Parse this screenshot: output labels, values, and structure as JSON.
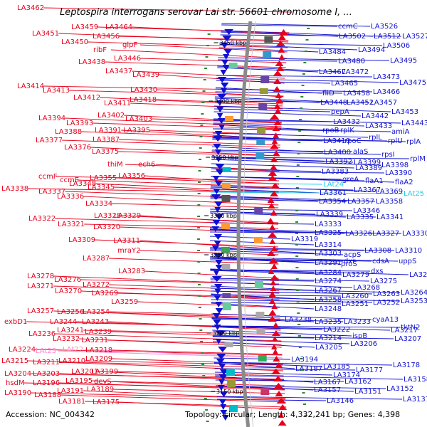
{
  "title": "Leptospira interrogans serovar Lai str. 56601 chromosome I, ...",
  "footer": {
    "accession": "Accession: NC_004342",
    "topology": "Topology: circular; Length: 4,332,241 bp; Genes: 4,398"
  },
  "colors": {
    "left_strand": "#e8001c",
    "right_strand": "#1010d0",
    "rna_left": "#ff88cc",
    "rna_right": "#22ccee",
    "ring": "#8a8a8a",
    "ticks": "#2c8a2c"
  },
  "kbp_marks": [
    "3450 kbp",
    "3400 kbp",
    "3350 kbp",
    "3300 kbp",
    "3250 kbp",
    "3200 kbp",
    "3150 kbp"
  ],
  "left_labels": [
    {
      "text": "LA3462",
      "style": "cds"
    },
    {
      "text": "LA3459",
      "style": "cds"
    },
    {
      "text": "LA3464",
      "style": "cds"
    },
    {
      "text": "LA3451",
      "style": "cds"
    },
    {
      "text": "LA3456",
      "style": "cds"
    },
    {
      "text": "LA3450",
      "style": "cds"
    },
    {
      "text": "glpF",
      "style": "cds"
    },
    {
      "text": "ribF",
      "style": "cds"
    },
    {
      "text": "LA3446",
      "style": "cds"
    },
    {
      "text": "LA3438",
      "style": "cds"
    },
    {
      "text": "LA3437",
      "style": "cds"
    },
    {
      "text": "LA3439",
      "style": "cds"
    },
    {
      "text": "LA3414",
      "style": "cds"
    },
    {
      "text": "LA3413",
      "style": "cds"
    },
    {
      "text": "LA3430",
      "style": "cds"
    },
    {
      "text": "LA3412",
      "style": "cds"
    },
    {
      "text": "LA3418",
      "style": "cds"
    },
    {
      "text": "LA3411",
      "style": "cds"
    },
    {
      "text": "LA3402",
      "style": "cds"
    },
    {
      "text": "LA3394",
      "style": "cds"
    },
    {
      "text": "LA3403",
      "style": "cds"
    },
    {
      "text": "LA3393",
      "style": "cds"
    },
    {
      "text": "LA3388",
      "style": "cds"
    },
    {
      "text": "LA3391",
      "style": "cds"
    },
    {
      "text": "LA3395",
      "style": "cds"
    },
    {
      "text": "LA3387",
      "style": "cds"
    },
    {
      "text": "LA3377",
      "style": "cds"
    },
    {
      "text": "LA3376",
      "style": "cds"
    },
    {
      "text": "LA3375",
      "style": "cds"
    },
    {
      "text": "thiM",
      "style": "cds"
    },
    {
      "text": "ech6",
      "style": "cds"
    },
    {
      "text": "LA3356",
      "style": "cds"
    },
    {
      "text": "ccmF",
      "style": "cds"
    },
    {
      "text": "LA3355",
      "style": "cds"
    },
    {
      "text": "ccmE",
      "style": "cds"
    },
    {
      "text": "LA3348",
      "style": "cds"
    },
    {
      "text": "LA3338",
      "style": "cds"
    },
    {
      "text": "LA3345",
      "style": "cds"
    },
    {
      "text": "LA3337",
      "style": "cds"
    },
    {
      "text": "LA3336",
      "style": "cds"
    },
    {
      "text": "LA3334",
      "style": "cds"
    },
    {
      "text": "LA3322",
      "style": "cds"
    },
    {
      "text": "LA3328",
      "style": "cds"
    },
    {
      "text": "LA3329",
      "style": "cds"
    },
    {
      "text": "LA3321",
      "style": "cds"
    },
    {
      "text": "LA3320",
      "style": "cds"
    },
    {
      "text": "LA3309",
      "style": "cds"
    },
    {
      "text": "LA3311",
      "style": "cds"
    },
    {
      "text": "mraY2",
      "style": "cds"
    },
    {
      "text": "LA3287",
      "style": "cds"
    },
    {
      "text": "LA3283",
      "style": "cds"
    },
    {
      "text": "LA3278",
      "style": "cds"
    },
    {
      "text": "LA3276",
      "style": "cds"
    },
    {
      "text": "LA3272",
      "style": "cds"
    },
    {
      "text": "LA3271",
      "style": "cds"
    },
    {
      "text": "LA3270",
      "style": "cds"
    },
    {
      "text": "LA3269",
      "style": "cds"
    },
    {
      "text": "LA3259",
      "style": "cds"
    },
    {
      "text": "LA3257",
      "style": "cds"
    },
    {
      "text": "LA3256",
      "style": "cds"
    },
    {
      "text": "LA3254",
      "style": "cds"
    },
    {
      "text": "exbD1",
      "style": "cds"
    },
    {
      "text": "LA3244",
      "style": "cds"
    },
    {
      "text": "LA3243",
      "style": "cds"
    },
    {
      "text": "LA3241",
      "style": "cds"
    },
    {
      "text": "LA3239",
      "style": "cds"
    },
    {
      "text": "LA3236",
      "style": "cds"
    },
    {
      "text": "LA3232",
      "style": "cds"
    },
    {
      "text": "LA3231",
      "style": "cds"
    },
    {
      "text": "LA3224",
      "style": "cds"
    },
    {
      "text": "LAt23",
      "style": "rna"
    },
    {
      "text": "LAt22",
      "style": "rna"
    },
    {
      "text": "LA3218",
      "style": "cds"
    },
    {
      "text": "LA3209",
      "style": "cds"
    },
    {
      "text": "LA3215",
      "style": "cds"
    },
    {
      "text": "LA3211",
      "style": "cds"
    },
    {
      "text": "LA3210",
      "style": "cds"
    },
    {
      "text": "LA3204",
      "style": "cds"
    },
    {
      "text": "LA3203",
      "style": "cds"
    },
    {
      "text": "LA3201",
      "style": "cds"
    },
    {
      "text": "LA3199",
      "style": "cds"
    },
    {
      "text": "hsdM",
      "style": "cds"
    },
    {
      "text": "LA3196",
      "style": "cds"
    },
    {
      "text": "LA3195",
      "style": "cds"
    },
    {
      "text": "devS",
      "style": "cds"
    },
    {
      "text": "LA3190",
      "style": "cds"
    },
    {
      "text": "LA3188",
      "style": "cds"
    },
    {
      "text": "LA3191",
      "style": "cds"
    },
    {
      "text": "LA3189",
      "style": "cds"
    },
    {
      "text": "LA3181",
      "style": "cds"
    },
    {
      "text": "LA3175",
      "style": "cds"
    }
  ],
  "right_labels": [
    {
      "text": "ccmC",
      "style": "cds"
    },
    {
      "text": "LA3526",
      "style": "cds"
    },
    {
      "text": "LA3502",
      "style": "cds"
    },
    {
      "text": "LA3512",
      "style": "cds"
    },
    {
      "text": "LA3527",
      "style": "cds"
    },
    {
      "text": "LA3506",
      "style": "cds"
    },
    {
      "text": "LA3484",
      "style": "cds"
    },
    {
      "text": "LA3494",
      "style": "cds"
    },
    {
      "text": "LA3480",
      "style": "cds"
    },
    {
      "text": "LA3495",
      "style": "cds"
    },
    {
      "text": "LA3467",
      "style": "cds"
    },
    {
      "text": "LA3472",
      "style": "cds"
    },
    {
      "text": "LA3473",
      "style": "cds"
    },
    {
      "text": "LA3465",
      "style": "cds"
    },
    {
      "text": "LA3475",
      "style": "cds"
    },
    {
      "text": "fliD",
      "style": "cds"
    },
    {
      "text": "LA3458",
      "style": "cds"
    },
    {
      "text": "LA3466",
      "style": "cds"
    },
    {
      "text": "LA3448",
      "style": "cds"
    },
    {
      "text": "LA3452",
      "style": "cds"
    },
    {
      "text": "LA3457",
      "style": "cds"
    },
    {
      "text": "pepA",
      "style": "cds"
    },
    {
      "text": "LA3442",
      "style": "cds"
    },
    {
      "text": "LA3453",
      "style": "cds"
    },
    {
      "text": "LA3432",
      "style": "cds"
    },
    {
      "text": "LA3433",
      "style": "cds"
    },
    {
      "text": "LA3443",
      "style": "cds"
    },
    {
      "text": "rpoB",
      "style": "cds"
    },
    {
      "text": "rplK",
      "style": "cds"
    },
    {
      "text": "amiA",
      "style": "cds"
    },
    {
      "text": "rplL",
      "style": "cds"
    },
    {
      "text": "LA3410",
      "style": "cds"
    },
    {
      "text": "rpoC",
      "style": "cds"
    },
    {
      "text": "rplU",
      "style": "cds"
    },
    {
      "text": "rplA",
      "style": "cds"
    },
    {
      "text": "LA3400",
      "style": "cds"
    },
    {
      "text": "alaS",
      "style": "cds"
    },
    {
      "text": "rpsI",
      "style": "cds"
    },
    {
      "text": "LA3392",
      "style": "cds"
    },
    {
      "text": "LA3399",
      "style": "cds"
    },
    {
      "text": "rplM",
      "style": "cds"
    },
    {
      "text": "LA3383",
      "style": "cds"
    },
    {
      "text": "LA3389",
      "style": "cds"
    },
    {
      "text": "LA3398",
      "style": "cds"
    },
    {
      "text": "LA3390",
      "style": "cds"
    },
    {
      "text": "greA",
      "style": "cds"
    },
    {
      "text": "flaA1",
      "style": "cds"
    },
    {
      "text": "flaA2",
      "style": "cds"
    },
    {
      "text": "LAt24",
      "style": "rna"
    },
    {
      "text": "LA3367",
      "style": "cds"
    },
    {
      "text": "LA3361",
      "style": "cds"
    },
    {
      "text": "LA3369",
      "style": "cds"
    },
    {
      "text": "LAt25",
      "style": "rna"
    },
    {
      "text": "LA3354",
      "style": "cds"
    },
    {
      "text": "LA3357",
      "style": "cds"
    },
    {
      "text": "LA3358",
      "style": "cds"
    },
    {
      "text": "LA3346",
      "style": "cds"
    },
    {
      "text": "LA3339",
      "style": "cds"
    },
    {
      "text": "LA3335",
      "style": "cds"
    },
    {
      "text": "LA3341",
      "style": "cds"
    },
    {
      "text": "LA3333",
      "style": "cds"
    },
    {
      "text": "LA3325",
      "style": "cds"
    },
    {
      "text": "LA3326",
      "style": "cds"
    },
    {
      "text": "LA3327",
      "style": "cds"
    },
    {
      "text": "LA3330",
      "style": "cds"
    },
    {
      "text": "LA3319",
      "style": "cds"
    },
    {
      "text": "LA3314",
      "style": "cds"
    },
    {
      "text": "LA3303",
      "style": "cds"
    },
    {
      "text": "LA3308",
      "style": "cds"
    },
    {
      "text": "LA3310",
      "style": "cds"
    },
    {
      "text": "acpS",
      "style": "cds"
    },
    {
      "text": "LA3291",
      "style": "cds"
    },
    {
      "text": "dxr",
      "style": "cds"
    },
    {
      "text": "cdsA",
      "style": "cds"
    },
    {
      "text": "uppS",
      "style": "cds"
    },
    {
      "text": "proS",
      "style": "cds"
    },
    {
      "text": "dxs",
      "style": "cds"
    },
    {
      "text": "LA3284",
      "style": "cds"
    },
    {
      "text": "LA3279",
      "style": "cds"
    },
    {
      "text": "LA3280",
      "style": "cds"
    },
    {
      "text": "LA3274",
      "style": "cds"
    },
    {
      "text": "LA3275",
      "style": "cds"
    },
    {
      "text": "LA3267",
      "style": "cds"
    },
    {
      "text": "LA3268",
      "style": "cds"
    },
    {
      "text": "LA3260",
      "style": "cds"
    },
    {
      "text": "LA3263",
      "style": "cds"
    },
    {
      "text": "LA3264",
      "style": "cds"
    },
    {
      "text": "LA3258",
      "style": "cds"
    },
    {
      "text": "LA3251",
      "style": "cds"
    },
    {
      "text": "LA3252",
      "style": "cds"
    },
    {
      "text": "LA3253",
      "style": "cds"
    },
    {
      "text": "LA3248",
      "style": "cds"
    },
    {
      "text": "LA3238",
      "style": "cds"
    },
    {
      "text": "LA3235",
      "style": "cds"
    },
    {
      "text": "LA3233",
      "style": "cds"
    },
    {
      "text": "cyaA13",
      "style": "cds"
    },
    {
      "text": "tktN2",
      "style": "cds"
    },
    {
      "text": "LA3222",
      "style": "cds"
    },
    {
      "text": "LA3217",
      "style": "cds"
    },
    {
      "text": "ispB",
      "style": "cds"
    },
    {
      "text": "LA3214",
      "style": "cds"
    },
    {
      "text": "LA3207",
      "style": "cds"
    },
    {
      "text": "LA3206",
      "style": "cds"
    },
    {
      "text": "LA3205",
      "style": "cds"
    },
    {
      "text": "LA3194",
      "style": "cds"
    },
    {
      "text": "LA3178",
      "style": "cds"
    },
    {
      "text": "LA3185",
      "style": "cds"
    },
    {
      "text": "LA3187",
      "style": "cds"
    },
    {
      "text": "LA3177",
      "style": "cds"
    },
    {
      "text": "LA3174",
      "style": "cds"
    },
    {
      "text": "LA3158",
      "style": "cds"
    },
    {
      "text": "LA3167",
      "style": "cds"
    },
    {
      "text": "LA3162",
      "style": "cds"
    },
    {
      "text": "LA3152",
      "style": "cds"
    },
    {
      "text": "LA3157",
      "style": "cds"
    },
    {
      "text": "LA3151",
      "style": "cds"
    },
    {
      "text": "LA3146",
      "style": "cds"
    },
    {
      "text": "LA3137",
      "style": "cds"
    }
  ]
}
